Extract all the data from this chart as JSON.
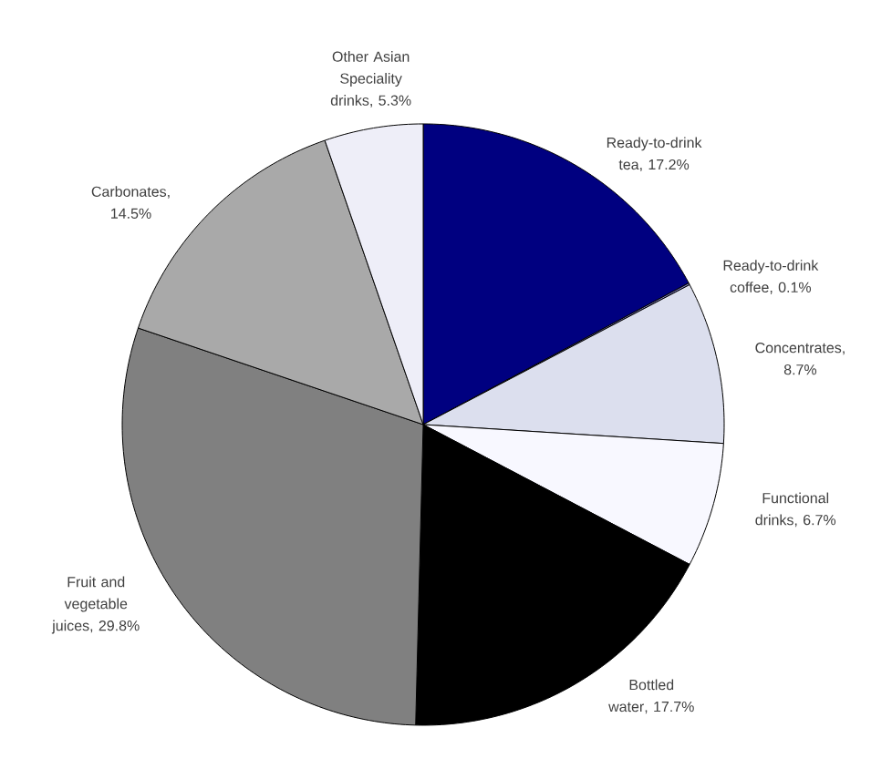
{
  "chart_data": {
    "type": "pie",
    "categories": [
      "Ready-to-drink tea",
      "Ready-to-drink coffee",
      "Concentrates",
      "Functional drinks",
      "Bottled water",
      "Fruit and vegetable juices",
      "Carbonates",
      "Other Asian Speciality drinks"
    ],
    "values": [
      17.2,
      0.1,
      8.7,
      6.7,
      17.7,
      29.8,
      14.5,
      5.3
    ],
    "value_labels": [
      ", 17.2%",
      ", 0.1%",
      ", 8.7%",
      ", 6.7%",
      ", 17.7%",
      ", 29.8%",
      ", 14.5%",
      ", 5.3%"
    ],
    "colors": [
      "#000080",
      "#8080c0",
      "#dcdfee",
      "#f8f8ff",
      "#000000",
      "#808080",
      "#a9a9a9",
      "#eeeef8"
    ]
  }
}
